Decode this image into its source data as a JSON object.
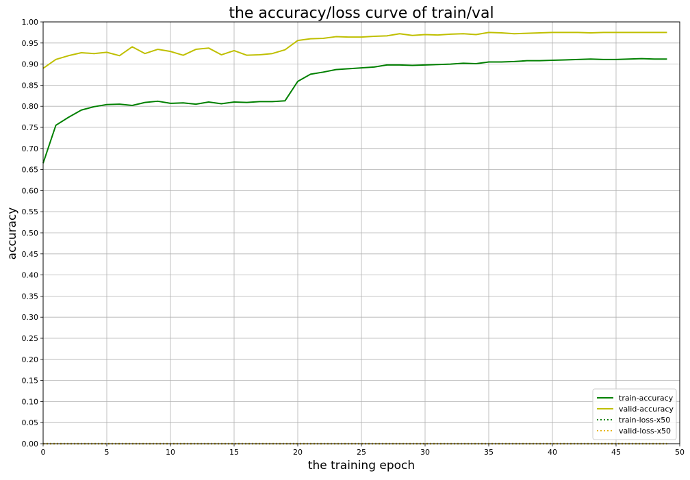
{
  "chart_data": {
    "type": "line",
    "title": "the accuracy/loss curve of train/val",
    "xlabel": "the training epoch",
    "ylabel": "accuracy",
    "xlim": [
      0,
      50
    ],
    "ylim": [
      0,
      1.0
    ],
    "x_ticks": [
      "0",
      "5",
      "10",
      "15",
      "20",
      "25",
      "30",
      "35",
      "40",
      "45",
      "50"
    ],
    "y_ticks": [
      "0.00",
      "0.05",
      "0.10",
      "0.15",
      "0.20",
      "0.25",
      "0.30",
      "0.35",
      "0.40",
      "0.45",
      "0.50",
      "0.55",
      "0.60",
      "0.65",
      "0.70",
      "0.75",
      "0.80",
      "0.85",
      "0.90",
      "0.95",
      "1.00"
    ],
    "grid": true,
    "legend_position": "bottom-right",
    "x": [
      0,
      1,
      2,
      3,
      4,
      5,
      6,
      7,
      8,
      9,
      10,
      11,
      12,
      13,
      14,
      15,
      16,
      17,
      18,
      19,
      20,
      21,
      22,
      23,
      24,
      25,
      26,
      27,
      28,
      29,
      30,
      31,
      32,
      33,
      34,
      35,
      36,
      37,
      38,
      39,
      40,
      41,
      42,
      43,
      44,
      45,
      46,
      47,
      48,
      49
    ],
    "series": [
      {
        "name": "train-accuracy",
        "color": "#008000",
        "style": "solid",
        "values": [
          0.665,
          0.755,
          0.774,
          0.791,
          0.799,
          0.804,
          0.805,
          0.802,
          0.809,
          0.812,
          0.807,
          0.808,
          0.805,
          0.81,
          0.806,
          0.81,
          0.809,
          0.811,
          0.811,
          0.813,
          0.859,
          0.876,
          0.881,
          0.887,
          0.889,
          0.891,
          0.893,
          0.898,
          0.898,
          0.897,
          0.898,
          0.899,
          0.9,
          0.902,
          0.901,
          0.905,
          0.905,
          0.906,
          0.908,
          0.908,
          0.909,
          0.91,
          0.911,
          0.912,
          0.911,
          0.911,
          0.912,
          0.913,
          0.912,
          0.912
        ]
      },
      {
        "name": "valid-accuracy",
        "color": "#bfbf00",
        "style": "solid",
        "values": [
          0.89,
          0.911,
          0.92,
          0.927,
          0.925,
          0.928,
          0.92,
          0.941,
          0.925,
          0.935,
          0.93,
          0.921,
          0.935,
          0.938,
          0.922,
          0.932,
          0.921,
          0.922,
          0.925,
          0.934,
          0.956,
          0.96,
          0.961,
          0.965,
          0.964,
          0.964,
          0.966,
          0.967,
          0.972,
          0.968,
          0.97,
          0.969,
          0.971,
          0.972,
          0.97,
          0.975,
          0.974,
          0.972,
          0.973,
          0.974,
          0.975,
          0.975,
          0.975,
          0.974,
          0.975,
          0.975,
          0.975,
          0.975,
          0.975,
          0.975
        ]
      },
      {
        "name": "train-loss-x50",
        "color": "#008000",
        "style": "dotted",
        "values": [
          0,
          0,
          0,
          0,
          0,
          0,
          0,
          0,
          0,
          0,
          0,
          0,
          0,
          0,
          0,
          0,
          0,
          0,
          0,
          0,
          0,
          0,
          0,
          0,
          0,
          0,
          0,
          0,
          0,
          0,
          0,
          0,
          0,
          0,
          0,
          0,
          0,
          0,
          0,
          0,
          0,
          0,
          0,
          0,
          0,
          0,
          0,
          0,
          0,
          0
        ]
      },
      {
        "name": "valid-loss-x50",
        "color": "#e6b400",
        "style": "dotted",
        "values": [
          0,
          0,
          0,
          0,
          0,
          0,
          0,
          0,
          0,
          0,
          0,
          0,
          0,
          0,
          0,
          0,
          0,
          0,
          0,
          0,
          0,
          0,
          0,
          0,
          0,
          0,
          0,
          0,
          0,
          0,
          0,
          0,
          0,
          0,
          0,
          0,
          0,
          0,
          0,
          0,
          0,
          0,
          0,
          0,
          0,
          0,
          0,
          0,
          0,
          0
        ]
      }
    ]
  }
}
